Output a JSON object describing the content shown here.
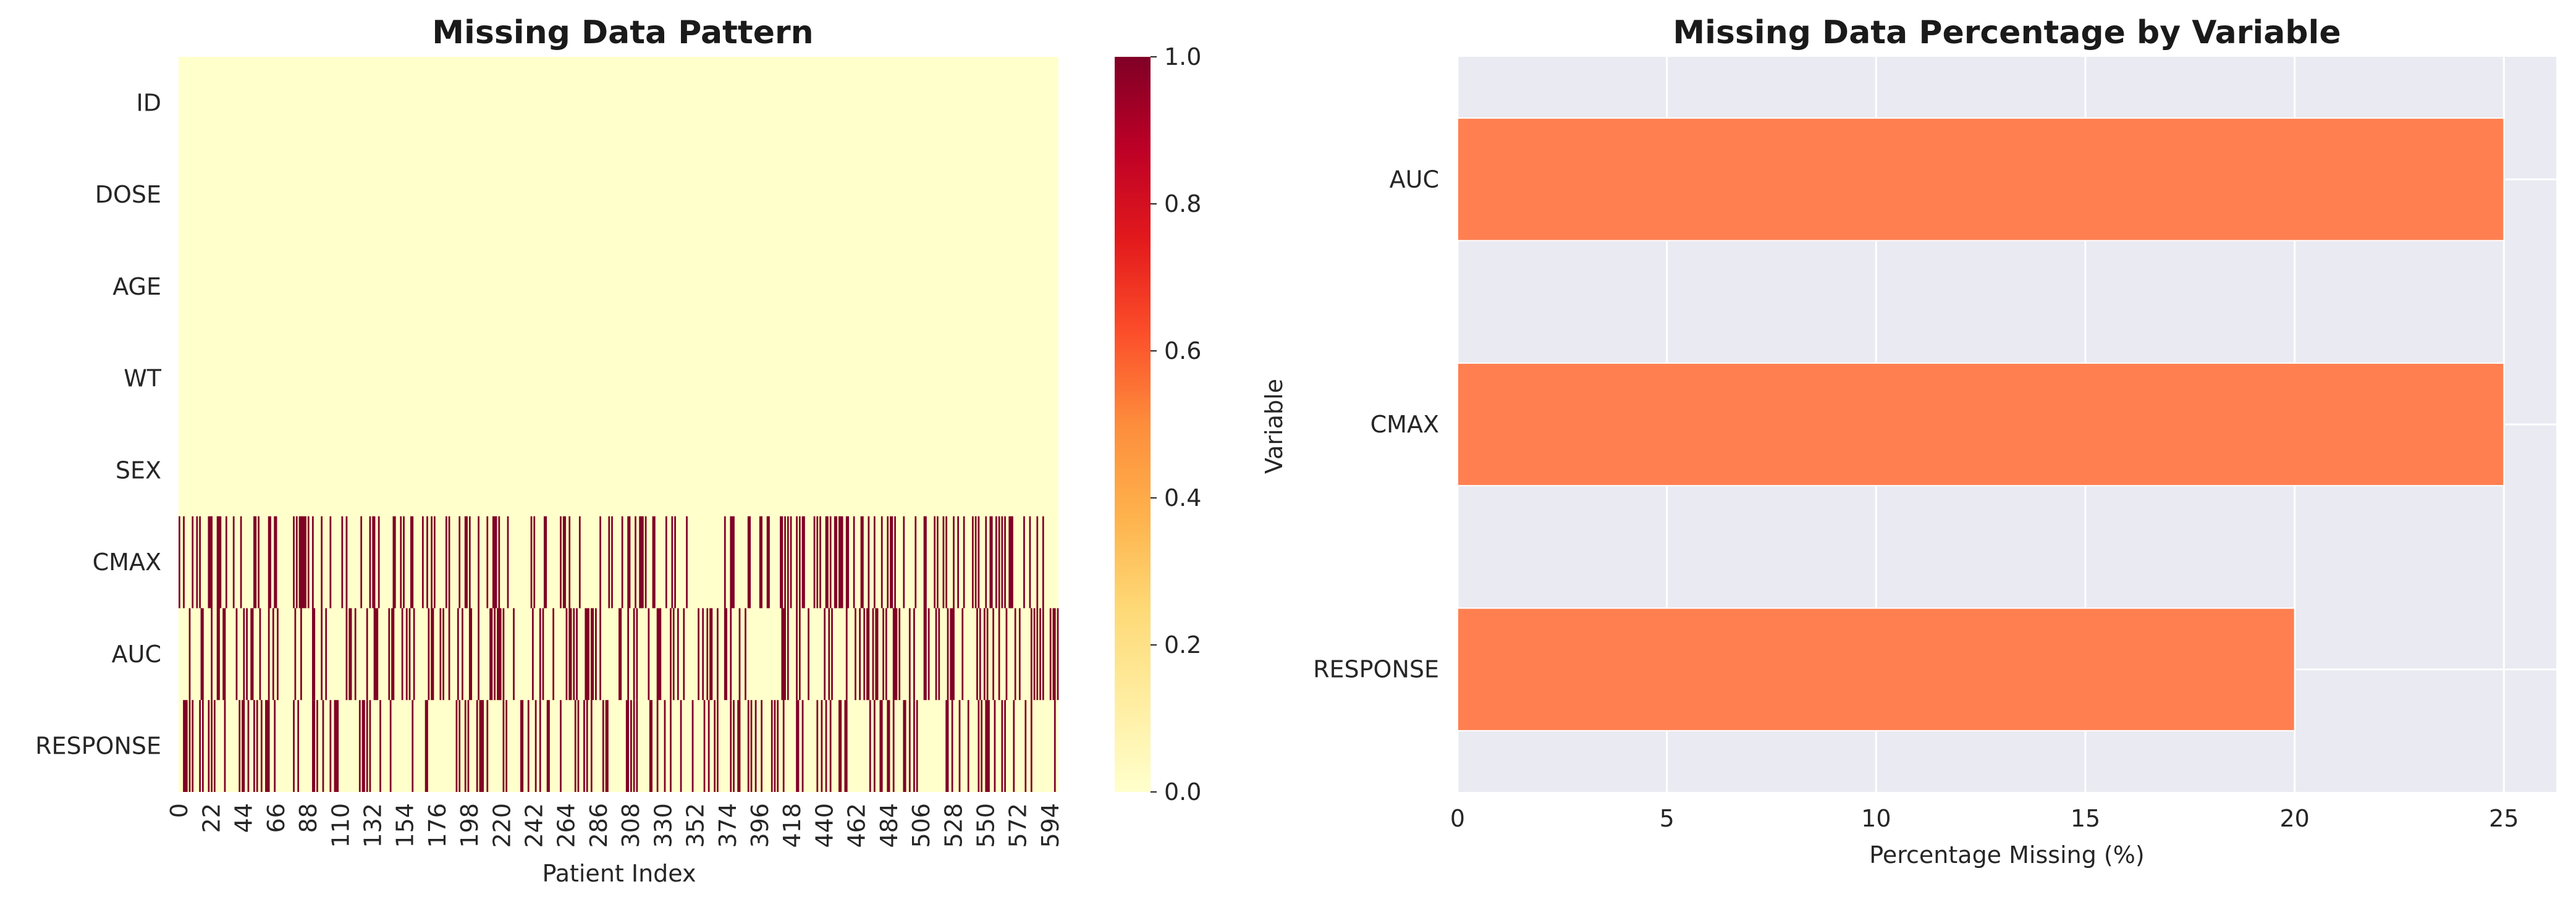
{
  "chart_data": [
    {
      "type": "heatmap",
      "title": "Missing Data Pattern",
      "xlabel": "Patient Index",
      "ylabel": "",
      "rows": [
        "ID",
        "DOSE",
        "AGE",
        "WT",
        "SEX",
        "CMAX",
        "AUC",
        "RESPONSE"
      ],
      "n_columns": 600,
      "x_tick_labels": [
        "0",
        "22",
        "44",
        "66",
        "88",
        "110",
        "132",
        "154",
        "176",
        "198",
        "220",
        "242",
        "264",
        "286",
        "308",
        "330",
        "352",
        "374",
        "396",
        "418",
        "440",
        "462",
        "484",
        "506",
        "528",
        "550",
        "572",
        "594"
      ],
      "missing_fraction_by_row": [
        0,
        0,
        0,
        0,
        0,
        0.25,
        0.25,
        0.2
      ],
      "cell_values": "0 = present, 1 = missing",
      "colormap": "YlOrRd",
      "colors": {
        "low": "#ffffcc",
        "mid": "#fd8d3c",
        "high": "#800026"
      },
      "colorbar": {
        "min": 0.0,
        "max": 1.0,
        "ticks": [
          "0.0",
          "0.2",
          "0.4",
          "0.6",
          "0.8",
          "1.0"
        ]
      }
    },
    {
      "type": "bar",
      "orientation": "horizontal",
      "title": "Missing Data Percentage by Variable",
      "xlabel": "Percentage Missing (%)",
      "ylabel": "Variable",
      "categories": [
        "AUC",
        "CMAX",
        "RESPONSE"
      ],
      "values": [
        25.0,
        25.0,
        20.0
      ],
      "xlim": [
        0,
        26.25
      ],
      "x_ticks": [
        "0",
        "5",
        "10",
        "15",
        "20",
        "25"
      ],
      "bar_color": "#ff7f50",
      "background": "#eaeaf2",
      "grid": true
    }
  ]
}
